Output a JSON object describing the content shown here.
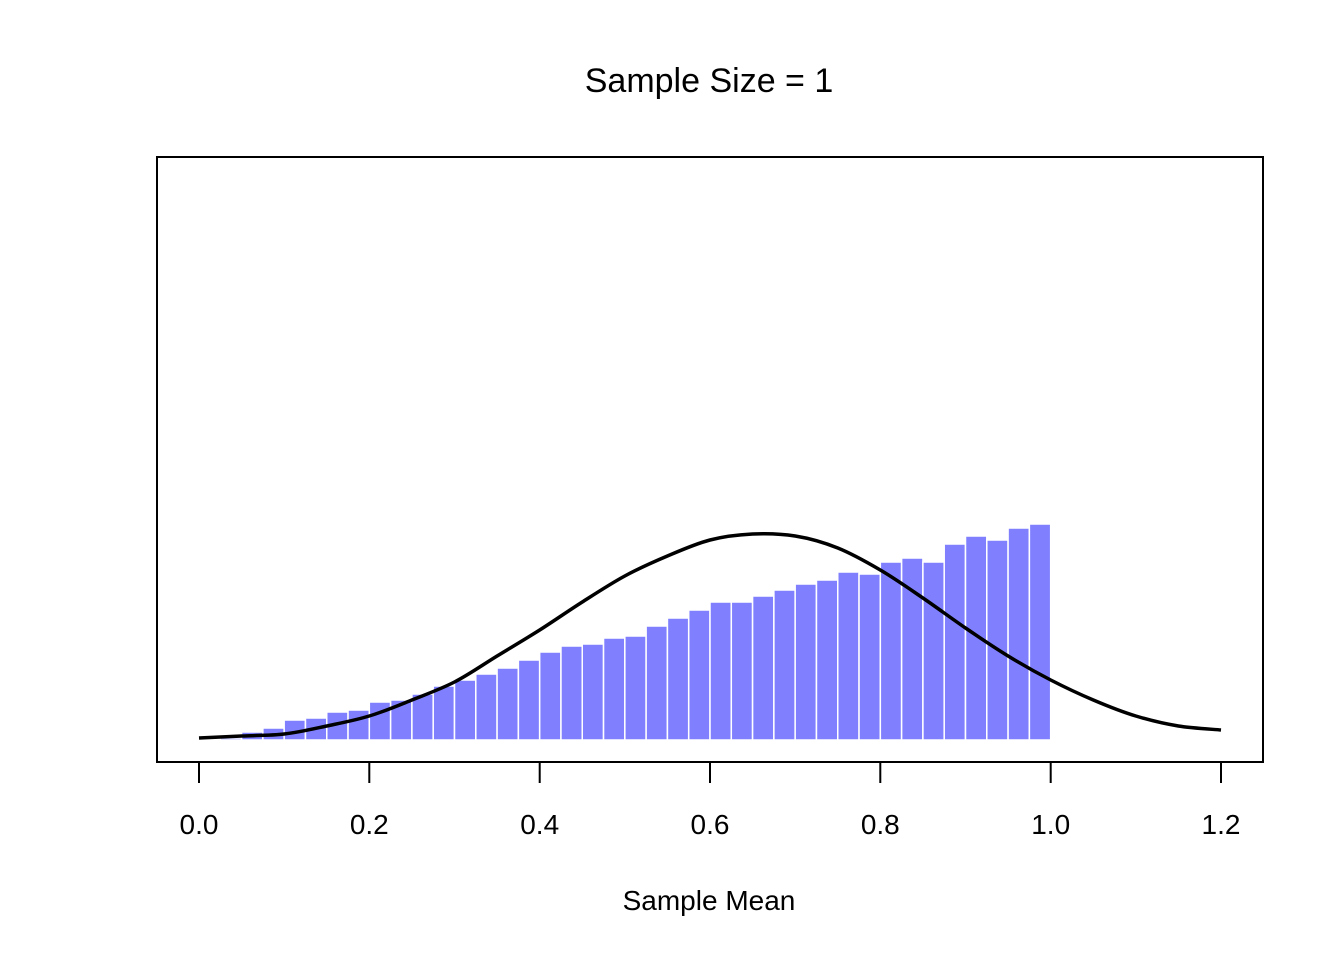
{
  "chart_data": {
    "type": "bar",
    "title": "Sample Size = 1",
    "xlabel": "Sample Mean",
    "ylabel": "",
    "xlim": [
      -0.05,
      1.25
    ],
    "ylim": [
      0,
      2.6
    ],
    "x_ticks": [
      0.0,
      0.2,
      0.4,
      0.6,
      0.8,
      1.0,
      1.2
    ],
    "x_tick_labels": [
      "0.0",
      "0.2",
      "0.4",
      "0.6",
      "0.8",
      "1.0",
      "1.2"
    ],
    "bar_color": "#8080ff",
    "bin_width": 0.025,
    "bins_start": [
      0.0,
      0.025,
      0.05,
      0.075,
      0.1,
      0.125,
      0.15,
      0.175,
      0.2,
      0.225,
      0.25,
      0.275,
      0.3,
      0.325,
      0.35,
      0.375,
      0.4,
      0.425,
      0.45,
      0.475,
      0.5,
      0.525,
      0.55,
      0.575,
      0.6,
      0.625,
      0.65,
      0.675,
      0.7,
      0.725,
      0.75,
      0.775,
      0.8,
      0.825,
      0.85,
      0.875,
      0.9,
      0.925,
      0.95,
      0.975
    ],
    "values": [
      0.0,
      0.01,
      0.04,
      0.06,
      0.1,
      0.11,
      0.14,
      0.15,
      0.19,
      0.2,
      0.23,
      0.27,
      0.3,
      0.33,
      0.36,
      0.4,
      0.44,
      0.47,
      0.48,
      0.51,
      0.52,
      0.57,
      0.61,
      0.65,
      0.69,
      0.69,
      0.72,
      0.75,
      0.78,
      0.8,
      0.84,
      0.83,
      0.89,
      0.91,
      0.89,
      0.98,
      1.02,
      1.0,
      1.06,
      1.08
    ],
    "series": [
      {
        "name": "normal density curve",
        "type": "line",
        "color": "#000000",
        "x": [
          0.0,
          0.05,
          0.1,
          0.15,
          0.2,
          0.25,
          0.3,
          0.35,
          0.4,
          0.45,
          0.5,
          0.55,
          0.6,
          0.65,
          0.7,
          0.75,
          0.8,
          0.85,
          0.9,
          0.95,
          1.0,
          1.05,
          1.1,
          1.15,
          1.2
        ],
        "y": [
          0.01,
          0.02,
          0.03,
          0.07,
          0.12,
          0.2,
          0.29,
          0.42,
          0.55,
          0.69,
          0.82,
          0.92,
          1.0,
          1.03,
          1.02,
          0.96,
          0.85,
          0.71,
          0.56,
          0.42,
          0.3,
          0.2,
          0.12,
          0.07,
          0.05
        ]
      }
    ]
  }
}
